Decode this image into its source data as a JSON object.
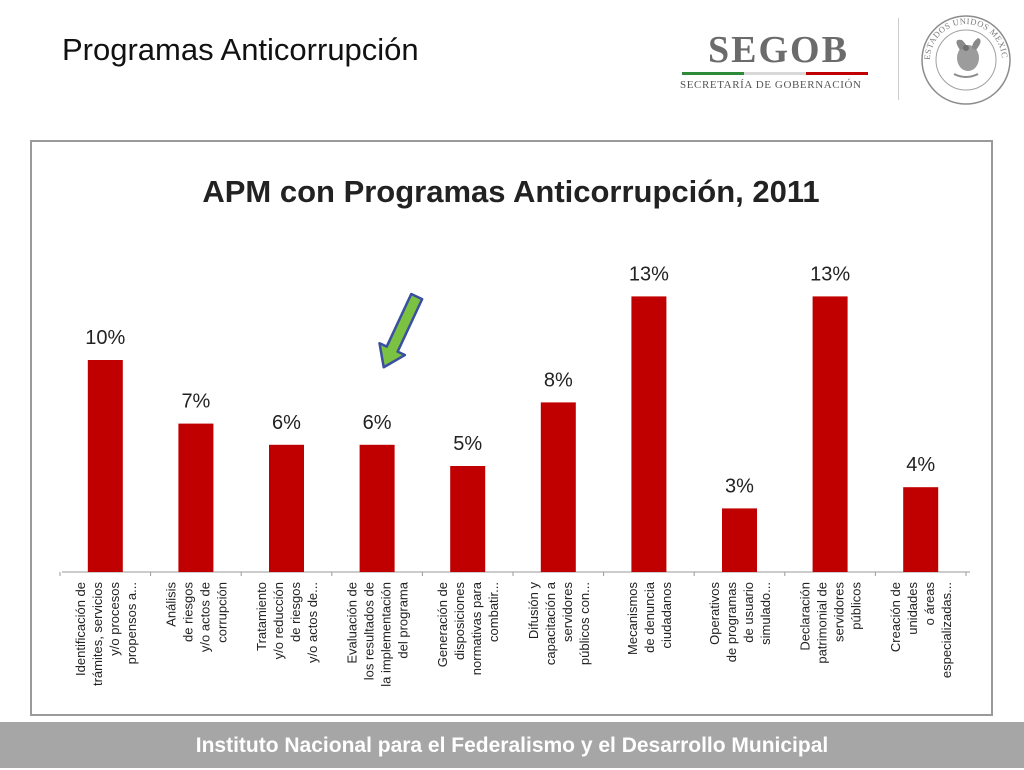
{
  "slide": {
    "title": "Programas Anticorrupción"
  },
  "logo": {
    "brand": "SEGOB",
    "subtitle": "SECRETARÍA DE GOBERNACIÓN",
    "seal_text": "ESTADOS UNIDOS MEXICANOS",
    "colors": {
      "green": "#2e8b3a",
      "white": "#d9d9d9",
      "red": "#c00000",
      "text": "#6b6b6b"
    }
  },
  "chart_data": {
    "type": "bar",
    "title": "APM con Programas Anticorrupción, 2011",
    "xlabel": "",
    "ylabel": "",
    "ylim": [
      0,
      13
    ],
    "grid": false,
    "legend": "none",
    "bar_color": "#c00000",
    "categories": [
      [
        "Identificación de",
        "trámites, servicios",
        "y/o procesos",
        "propensos a..."
      ],
      [
        "Análisis",
        "de riesgos",
        "y/o actos de",
        "corrupción"
      ],
      [
        "Tratamiento",
        "y/o reducción",
        "de riesgos",
        "y/o actos de..."
      ],
      [
        "Evaluación de",
        "los resultados de",
        "la implementación",
        "del programa"
      ],
      [
        "Generación de",
        "disposiciones",
        "normativas para",
        "combatir..."
      ],
      [
        "Difusión y",
        "capacitación a",
        "servidores",
        "públicos con..."
      ],
      [
        "Mecanismos",
        "de denuncia",
        "ciudadanos"
      ],
      [
        "Operativos",
        "de programas",
        "de usuario",
        "simulado..."
      ],
      [
        "Declaración",
        "patrimonial de",
        "servidores",
        "públicos"
      ],
      [
        "Creación de",
        "unidades",
        "o áreas",
        "especializadas..."
      ]
    ],
    "values": [
      10,
      7,
      6,
      6,
      5,
      8,
      13,
      3,
      13,
      4
    ],
    "data_labels": [
      "10%",
      "7%",
      "6%",
      "6%",
      "5%",
      "8%",
      "13%",
      "3%",
      "13%",
      "4%"
    ],
    "annotation": {
      "type": "arrow",
      "target_index": 3,
      "color": "#7cc242"
    }
  },
  "footer": {
    "text": "Instituto Nacional para el Federalismo y el Desarrollo Municipal"
  }
}
